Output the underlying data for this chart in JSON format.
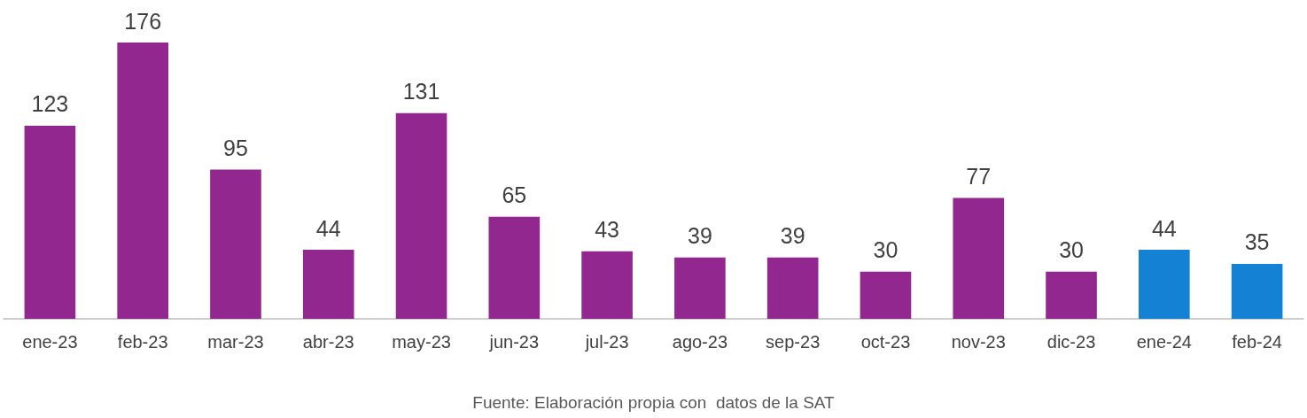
{
  "chart_data": {
    "type": "bar",
    "categories": [
      "ene-23",
      "feb-23",
      "mar-23",
      "abr-23",
      "may-23",
      "jun-23",
      "jul-23",
      "ago-23",
      "sep-23",
      "oct-23",
      "nov-23",
      "dic-23",
      "ene-24",
      "feb-24"
    ],
    "values": [
      123,
      176,
      95,
      44,
      131,
      65,
      43,
      39,
      39,
      30,
      77,
      30,
      44,
      35
    ],
    "colors": [
      "#92278f",
      "#92278f",
      "#92278f",
      "#92278f",
      "#92278f",
      "#92278f",
      "#92278f",
      "#92278f",
      "#92278f",
      "#92278f",
      "#92278f",
      "#92278f",
      "#1481d4",
      "#1481d4"
    ],
    "data_labels": true,
    "annotations": [
      "Fuente: Elaboración propia con  datos de la SAT"
    ]
  }
}
